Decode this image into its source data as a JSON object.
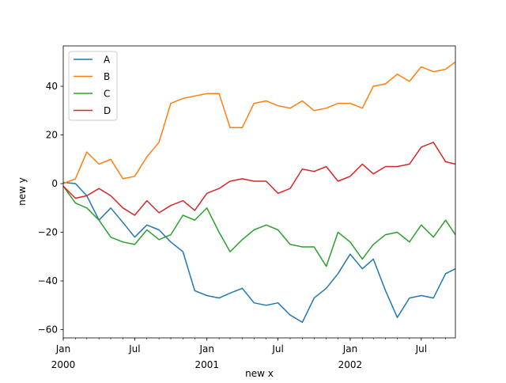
{
  "chart_data": {
    "type": "line",
    "title": "",
    "xlabel": "new x",
    "ylabel": "new y",
    "ylim": [
      -63.4,
      56.6
    ],
    "xlim": [
      "2000-01-01",
      "2002-09-26"
    ],
    "yticks": [
      -60,
      -40,
      -20,
      0,
      20,
      40
    ],
    "xticks": [
      {
        "date": "2000-01-01",
        "label": "Jan",
        "sublabel": "2000"
      },
      {
        "date": "2000-07-01",
        "label": "Jul",
        "sublabel": ""
      },
      {
        "date": "2001-01-01",
        "label": "Jan",
        "sublabel": "2001"
      },
      {
        "date": "2001-07-01",
        "label": "Jul",
        "sublabel": ""
      },
      {
        "date": "2002-01-01",
        "label": "Jan",
        "sublabel": "2002"
      },
      {
        "date": "2002-07-01",
        "label": "Jul",
        "sublabel": ""
      }
    ],
    "grid": false,
    "legend_position": "upper-left",
    "x": [
      "2000-01-01",
      "2000-02-01",
      "2000-03-01",
      "2000-04-01",
      "2000-05-01",
      "2000-06-01",
      "2000-07-01",
      "2000-08-01",
      "2000-09-01",
      "2000-10-01",
      "2000-11-01",
      "2000-12-01",
      "2001-01-01",
      "2001-02-01",
      "2001-03-01",
      "2001-04-01",
      "2001-05-01",
      "2001-06-01",
      "2001-07-01",
      "2001-08-01",
      "2001-09-01",
      "2001-10-01",
      "2001-11-01",
      "2001-12-01",
      "2002-01-01",
      "2002-02-01",
      "2002-03-01",
      "2002-04-01",
      "2002-05-01",
      "2002-06-01",
      "2002-07-01",
      "2002-08-01",
      "2002-09-01",
      "2002-09-26"
    ],
    "series": [
      {
        "name": "A",
        "color": "#1f77b4",
        "values": [
          0.5,
          0,
          -5,
          -15,
          -10,
          -16,
          -22,
          -17,
          -19,
          -24,
          -28,
          -44,
          -46,
          -47,
          -45,
          -43,
          -49,
          -50,
          -49,
          -54,
          -57,
          -47,
          -43,
          -37,
          -29,
          -35,
          -31,
          -44,
          -55,
          -47,
          -46,
          -47,
          -37,
          -35
        ]
      },
      {
        "name": "B",
        "color": "#ff7f0e",
        "values": [
          0,
          2,
          13,
          8,
          10,
          2,
          3,
          11,
          17,
          33,
          35,
          36,
          37,
          37,
          23,
          23,
          33,
          34,
          32,
          31,
          34,
          30,
          31,
          33,
          33,
          31,
          40,
          41,
          45,
          42,
          48,
          46,
          47,
          50
        ]
      },
      {
        "name": "C",
        "color": "#2ca02c",
        "values": [
          -1,
          -8,
          -10,
          -15,
          -22,
          -24,
          -25,
          -19,
          -23,
          -21,
          -13,
          -15,
          -10,
          -20,
          -28,
          -23,
          -19,
          -17,
          -19,
          -25,
          -26,
          -26,
          -34,
          -20,
          -24,
          -31,
          -25,
          -21,
          -20,
          -24,
          -17,
          -22,
          -15,
          -21
        ]
      },
      {
        "name": "D",
        "color": "#d62728",
        "values": [
          -1,
          -6,
          -5,
          -2,
          -5,
          -10,
          -13,
          -7,
          -12,
          -9,
          -7,
          -11,
          -4,
          -2,
          1,
          2,
          1,
          1,
          -4,
          -2,
          6,
          5,
          7,
          1,
          3,
          8,
          4,
          7,
          7,
          8,
          15,
          17,
          9,
          8
        ]
      }
    ]
  }
}
